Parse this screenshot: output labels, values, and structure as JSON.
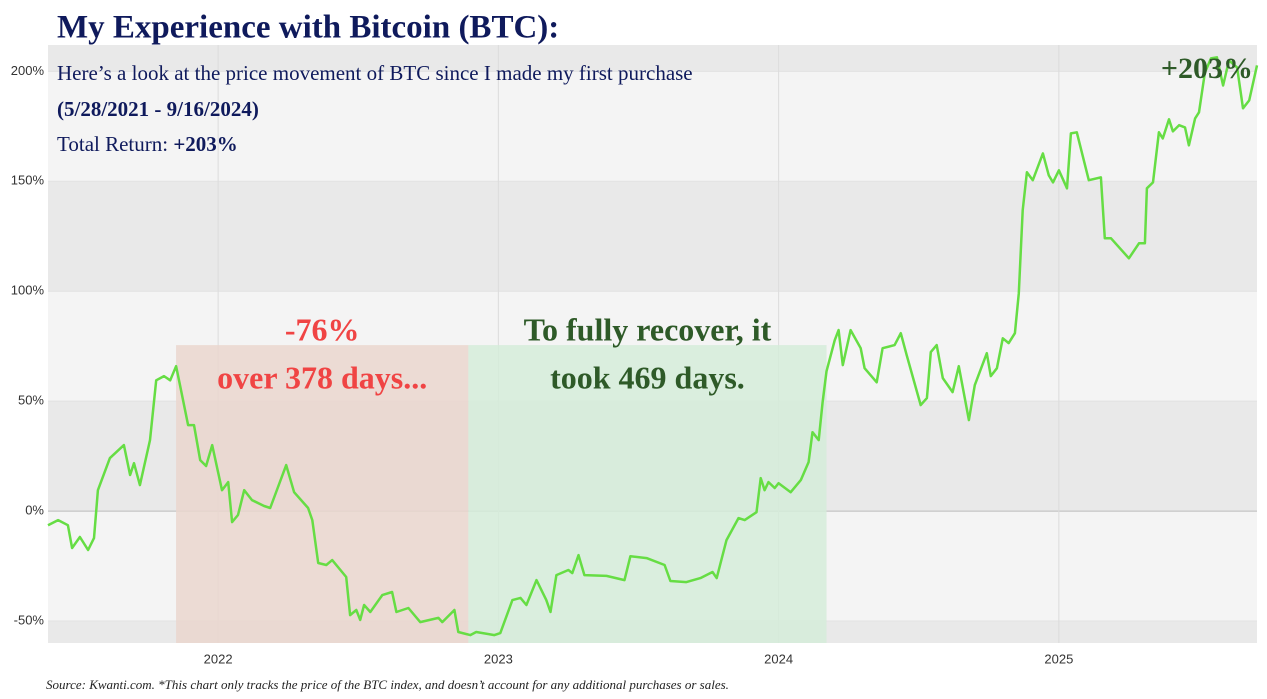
{
  "chart_data": {
    "type": "line",
    "title": "My Experience with Bitcoin (BTC):",
    "subtitle": [
      "Here’s a look at the price movement of BTC since I made my first purchase",
      "(5/28/2021 - 9/16/2024)"
    ],
    "total_return_label": "Total Return:",
    "total_return": "+203%",
    "source": "Source: Kwanti.com.  *This chart only tracks the price of the BTC index, and doesn’t account for any additional purchases or sales.",
    "color": "#66dd44",
    "xlim": [
      2021.393,
      2025.707
    ],
    "xticks": [
      2022,
      2023,
      2024,
      2025
    ],
    "ylim": [
      -60,
      212
    ],
    "yticks": [
      {
        "value": -50,
        "label": "-50%"
      },
      {
        "value": 0,
        "label": "0%"
      },
      {
        "value": 50,
        "label": "50%"
      },
      {
        "value": 100,
        "label": "100%"
      },
      {
        "value": 150,
        "label": "150%"
      },
      {
        "value": 200,
        "label": "200%"
      }
    ],
    "grid": true,
    "x": [
      2021.393,
      2021.429,
      2021.464,
      2021.479,
      2021.507,
      2021.536,
      2021.557,
      2021.571,
      2021.614,
      2021.664,
      2021.686,
      2021.7,
      2021.721,
      2021.757,
      2021.779,
      2021.807,
      2021.829,
      2021.85,
      2021.864,
      2021.893,
      2021.914,
      2021.936,
      2021.957,
      2021.979,
      2022.014,
      2022.036,
      2022.05,
      2022.071,
      2022.093,
      2022.121,
      2022.164,
      2022.186,
      2022.243,
      2022.271,
      2022.321,
      2022.336,
      2022.357,
      2022.386,
      2022.407,
      2022.457,
      2022.471,
      2022.493,
      2022.507,
      2022.521,
      2022.543,
      2022.586,
      2022.621,
      2022.636,
      2022.679,
      2022.721,
      2022.786,
      2022.8,
      2022.843,
      2022.857,
      2022.9,
      2022.921,
      2022.986,
      2023.007,
      2023.05,
      2023.079,
      2023.1,
      2023.136,
      2023.171,
      2023.186,
      2023.207,
      2023.25,
      2023.264,
      2023.286,
      2023.307,
      2023.386,
      2023.45,
      2023.471,
      2023.529,
      2023.593,
      2023.614,
      2023.671,
      2023.721,
      2023.764,
      2023.779,
      2023.814,
      2023.857,
      2023.879,
      2023.921,
      2023.936,
      2023.95,
      2023.964,
      2023.986,
      2024.0,
      2024.043,
      2024.079,
      2024.107,
      2024.121,
      2024.143,
      2024.157,
      2024.171,
      2024.2,
      2024.214,
      2024.229,
      2024.257,
      2024.293,
      2024.307,
      2024.35,
      2024.371,
      2024.414,
      2024.436,
      2024.457,
      2024.507,
      2024.529,
      2024.543,
      2024.564,
      2024.586,
      2024.621,
      2024.643,
      2024.679,
      2024.7,
      2024.743,
      2024.757,
      2024.779,
      2024.8,
      2024.821,
      2024.843,
      2024.857,
      2024.871,
      2024.886,
      2024.907,
      2024.943,
      2024.964,
      2024.979,
      2025.0,
      2025.029,
      2025.043,
      2025.064,
      2025.107,
      2025.15,
      2025.164,
      2025.186,
      2025.25,
      2025.286,
      2025.307,
      2025.314,
      2025.336,
      2025.357,
      2025.371,
      2025.393,
      2025.407,
      2025.429,
      2025.45,
      2025.464,
      2025.486,
      2025.5,
      2025.521,
      2025.543,
      2025.564,
      2025.586,
      2025.607,
      2025.636,
      2025.657,
      2025.679,
      2025.707
    ],
    "values": [
      -6.4,
      -4.1,
      -6.4,
      -16.8,
      -11.8,
      -17.7,
      -12.3,
      9.5,
      24.1,
      30,
      16.4,
      21.8,
      11.8,
      32.3,
      59.5,
      61.4,
      59.5,
      65.9,
      57.3,
      39.1,
      39.1,
      23.2,
      20.5,
      30,
      9.5,
      13.2,
      -5,
      -1.8,
      9.5,
      5,
      2.3,
      1.4,
      20.9,
      8.6,
      1.4,
      -4.1,
      -23.6,
      -24.5,
      -22.3,
      -30,
      -47.3,
      -45,
      -49.5,
      -42.7,
      -45.9,
      -38.2,
      -36.8,
      -45.9,
      -44.1,
      -50.5,
      -48.6,
      -50.5,
      -45,
      -55,
      -56.4,
      -55,
      -56.4,
      -55.5,
      -40.5,
      -39.5,
      -42.7,
      -31.4,
      -40.5,
      -45.9,
      -29.1,
      -26.8,
      -28.2,
      -20,
      -29.1,
      -29.5,
      -31.4,
      -20.5,
      -21.4,
      -24.5,
      -31.8,
      -32.3,
      -30.5,
      -27.7,
      -30.5,
      -13.2,
      -3.2,
      -4.1,
      -0.5,
      15,
      9.5,
      13.2,
      10.5,
      12.7,
      8.6,
      14.1,
      22.3,
      35.9,
      32.3,
      49.5,
      63.6,
      77.7,
      82.3,
      66.4,
      82.3,
      74.1,
      65,
      58.6,
      74.1,
      75.5,
      80.9,
      70.9,
      48.2,
      51.4,
      72.3,
      75.5,
      60.5,
      54.1,
      65.9,
      41.4,
      57.3,
      71.8,
      61.4,
      65,
      78.6,
      76.4,
      80.9,
      99.1,
      136.8,
      154.1,
      150.5,
      162.7,
      152.7,
      149.5,
      155,
      146.8,
      171.8,
      172.3,
      150.5,
      151.8,
      124.1,
      124.1,
      115,
      121.8,
      121.8,
      146.8,
      149.5,
      172.3,
      169.5,
      178.2,
      172.7,
      175.5,
      174.5,
      166.4,
      178.6,
      181.4,
      199.5,
      205.9,
      206.4,
      193.6,
      205,
      201.8,
      183.2,
      186.8,
      202.7
    ],
    "regions": [
      {
        "x0": 2021.85,
        "x1": 2022.893,
        "y1": 75.5,
        "color": "#ead6ce",
        "label_color": "#f04444",
        "label": [
          "-76%",
          "over 378 days..."
        ]
      },
      {
        "x0": 2022.893,
        "x1": 2024.171,
        "y1": 75.5,
        "color": "#d5ecd9",
        "label_color": "#2e5a28",
        "label": [
          "To fully recover, it",
          "took 469 days."
        ]
      }
    ],
    "end_label": "+203%",
    "end_label_color": "#2e5a28",
    "title_color": "#0f1a5c"
  }
}
